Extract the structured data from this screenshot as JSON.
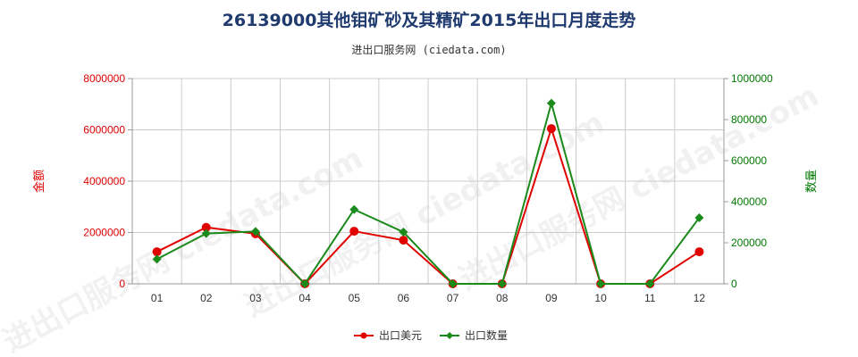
{
  "title": "26139000其他钼矿砂及其精矿2015年出口月度走势",
  "subtitle": "进出口服务网 (ciedata.com)",
  "watermark": "进出口服务网 ciedata.com",
  "colors": {
    "left_axis": "#e00000",
    "right_axis": "#007700",
    "series_value": "#e00000",
    "series_qty": "#1a8a1a",
    "title": "#1f3a6e"
  },
  "chart_data": {
    "type": "line",
    "title": "26139000其他钼矿砂及其精矿2015年出口月度走势",
    "categories": [
      "01",
      "02",
      "03",
      "04",
      "05",
      "06",
      "07",
      "08",
      "09",
      "10",
      "11",
      "12"
    ],
    "ylabel_left": "金额",
    "ylabel_right": "数量",
    "ylim_left": [
      0,
      8000000
    ],
    "ylim_right": [
      0,
      1000000
    ],
    "yticks_left": [
      "0",
      "2000000",
      "4000000",
      "6000000",
      "8000000"
    ],
    "yticks_right": [
      "0",
      "200000",
      "400000",
      "600000",
      "800000",
      "1000000"
    ],
    "grid": true,
    "legend_position": "bottom",
    "series": [
      {
        "name": "出口美元",
        "axis": "left",
        "values": [
          1250000,
          2200000,
          1950000,
          0,
          2050000,
          1700000,
          0,
          0,
          6050000,
          0,
          0,
          1250000
        ]
      },
      {
        "name": "出口数量",
        "axis": "right",
        "values": [
          120000,
          245000,
          255000,
          0,
          362000,
          252000,
          0,
          0,
          880000,
          0,
          0,
          322000
        ]
      }
    ]
  }
}
